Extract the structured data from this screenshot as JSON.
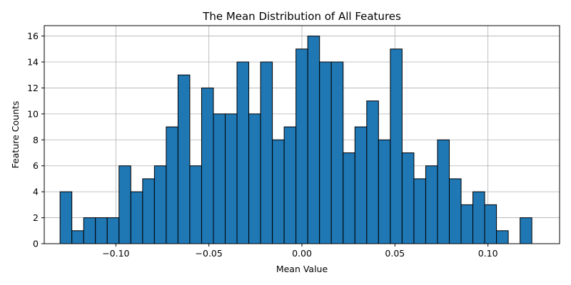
{
  "chart_data": {
    "type": "bar",
    "title": "The Mean Distribution of All Features",
    "xlabel": "Mean Value",
    "ylabel": "Feature Counts",
    "bin_start": -0.13,
    "bin_width": 0.00634,
    "counts": [
      4,
      1,
      2,
      2,
      2,
      6,
      4,
      5,
      6,
      9,
      13,
      6,
      12,
      10,
      10,
      14,
      10,
      14,
      8,
      9,
      15,
      16,
      14,
      14,
      7,
      9,
      11,
      8,
      15,
      7,
      5,
      6,
      8,
      5,
      3,
      4,
      3,
      1,
      0,
      2
    ],
    "xlim": [
      -0.1385,
      0.1385
    ],
    "ylim": [
      0,
      16.8
    ],
    "xticks": [
      -0.1,
      -0.05,
      0.0,
      0.05,
      0.1
    ],
    "xtick_labels": [
      "−0.10",
      "−0.05",
      "0.00",
      "0.05",
      "0.10"
    ],
    "yticks": [
      0,
      2,
      4,
      6,
      8,
      10,
      12,
      14,
      16
    ],
    "ytick_labels": [
      "0",
      "2",
      "4",
      "6",
      "8",
      "10",
      "12",
      "14",
      "16"
    ],
    "grid": true,
    "bar_color": "#1f77b4",
    "edge_color": "#000000"
  }
}
